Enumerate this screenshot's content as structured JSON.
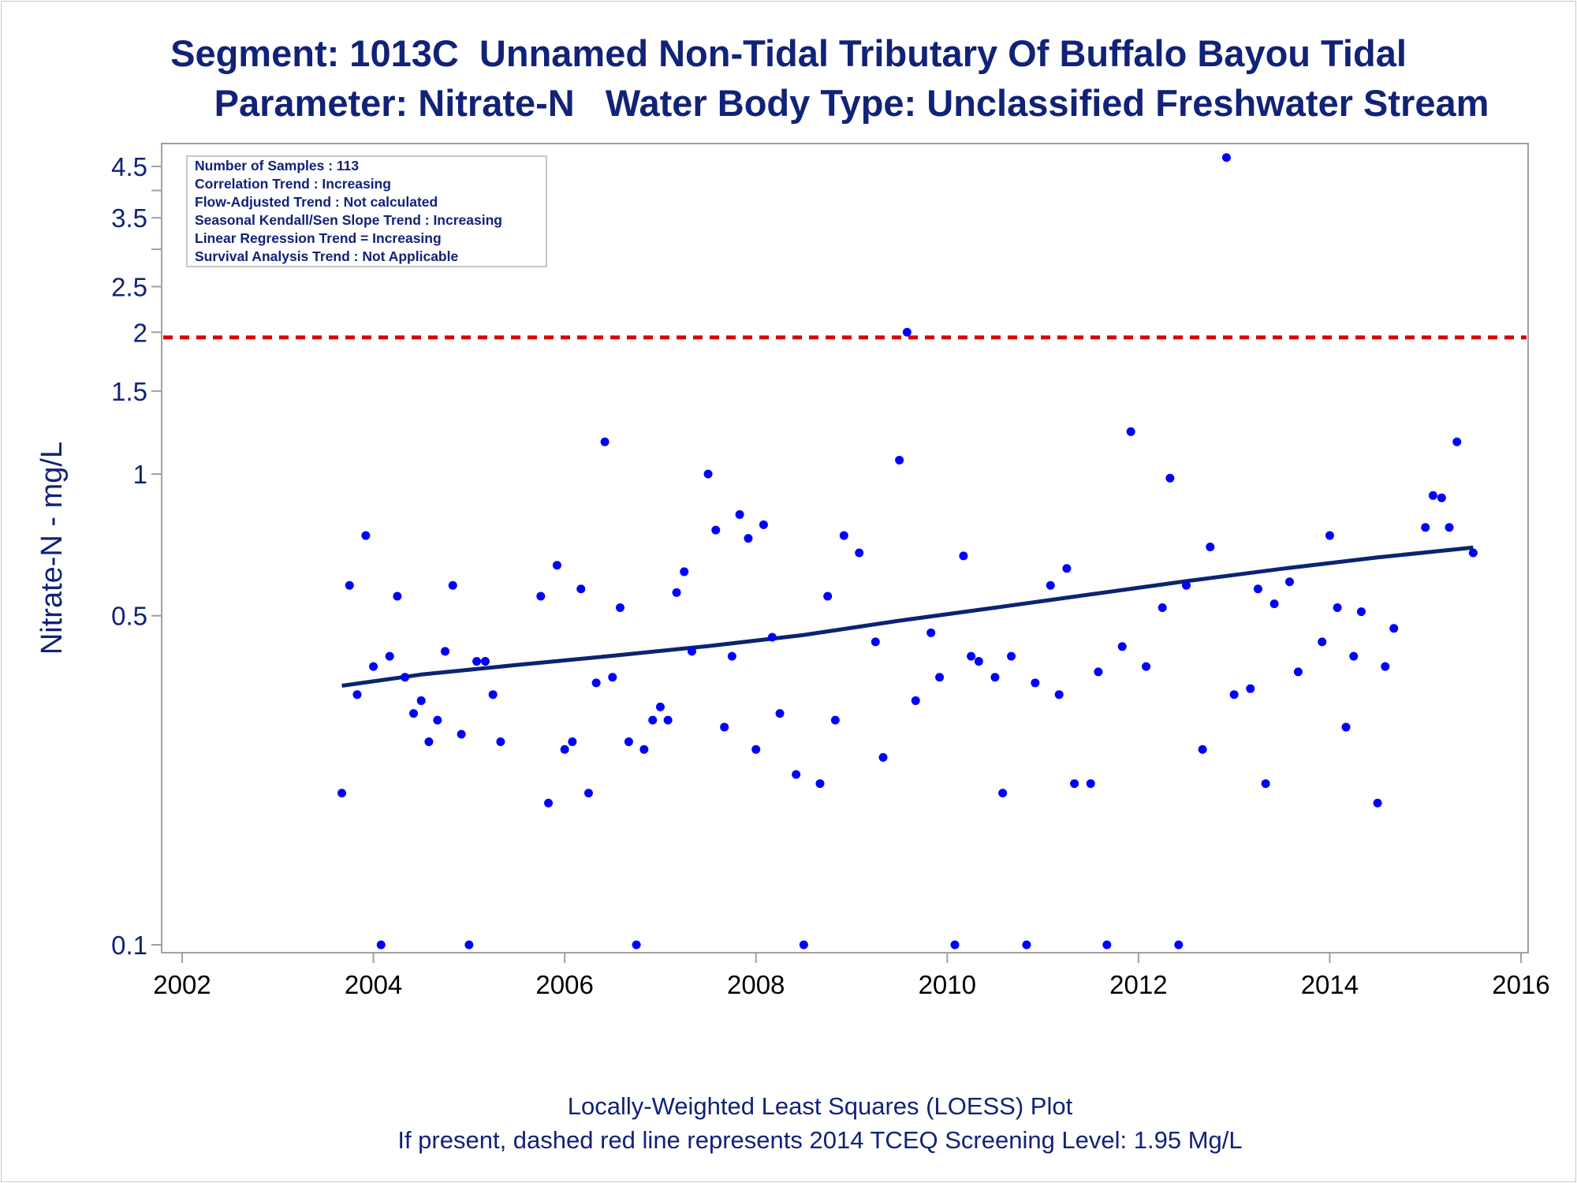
{
  "title_line1": "Segment: 1013C  Unnamed Non-Tidal Tributary Of Buffalo Bayou Tidal",
  "title_line2": "Parameter: Nitrate-N   Water Body Type: Unclassified Freshwater Stream",
  "footnote_line1": "Locally-Weighted Least Squares (LOESS) Plot",
  "footnote_line2": "If present, dashed red line represents 2014 TCEQ Screening Level: 1.95 Mg/L",
  "stats_box": [
    "Number of Samples : 113",
    "Correlation Trend : Increasing",
    "Flow-Adjusted Trend : Not calculated",
    "Seasonal Kendall/Sen Slope Trend : Increasing",
    "Linear Regression Trend = Increasing",
    "Survival Analysis Trend : Not Applicable"
  ],
  "colors": {
    "text": "#112277",
    "points": "#0000ff",
    "trend_line": "#0a2470",
    "screening_line": "#dd0000",
    "frame": "#a0a0a0"
  },
  "chart_data": {
    "type": "scatter",
    "xlabel": "",
    "ylabel": "Nitrate-N - mg/L",
    "x_scale": "year",
    "y_scale": "log",
    "xlim": [
      2002,
      2016
    ],
    "ylim": [
      0.1,
      4.9
    ],
    "xticks": [
      "2002",
      "2004",
      "2006",
      "2008",
      "2010",
      "2012",
      "2014",
      "2016"
    ],
    "yticks": [
      {
        "value": 0.1,
        "label": "0.1"
      },
      {
        "value": 0.5,
        "label": "0.5"
      },
      {
        "value": 1,
        "label": "1"
      },
      {
        "value": 1.5,
        "label": "1.5"
      },
      {
        "value": 2,
        "label": "2"
      },
      {
        "value": 2.5,
        "label": "2.5"
      },
      {
        "value": 3,
        "label": ""
      },
      {
        "value": 3.5,
        "label": "3.5"
      },
      {
        "value": 4,
        "label": ""
      },
      {
        "value": 4.5,
        "label": "4.5"
      }
    ],
    "screening_level": 1.95,
    "points": [
      [
        2003.67,
        0.21
      ],
      [
        2003.75,
        0.58
      ],
      [
        2003.83,
        0.34
      ],
      [
        2003.92,
        0.74
      ],
      [
        2004.0,
        0.39
      ],
      [
        2004.08,
        0.1
      ],
      [
        2004.17,
        0.41
      ],
      [
        2004.25,
        0.55
      ],
      [
        2004.33,
        0.37
      ],
      [
        2004.42,
        0.31
      ],
      [
        2004.5,
        0.33
      ],
      [
        2004.58,
        0.27
      ],
      [
        2004.67,
        0.3
      ],
      [
        2004.75,
        0.42
      ],
      [
        2004.83,
        0.58
      ],
      [
        2004.92,
        0.28
      ],
      [
        2005.0,
        0.1
      ],
      [
        2005.08,
        0.4
      ],
      [
        2005.17,
        0.4
      ],
      [
        2005.25,
        0.34
      ],
      [
        2005.33,
        0.27
      ],
      [
        2005.75,
        0.55
      ],
      [
        2005.83,
        0.2
      ],
      [
        2005.92,
        0.64
      ],
      [
        2006.0,
        0.26
      ],
      [
        2006.08,
        0.27
      ],
      [
        2006.17,
        0.57
      ],
      [
        2006.25,
        0.21
      ],
      [
        2006.33,
        0.36
      ],
      [
        2006.42,
        1.17
      ],
      [
        2006.5,
        0.37
      ],
      [
        2006.58,
        0.52
      ],
      [
        2006.67,
        0.27
      ],
      [
        2006.75,
        0.1
      ],
      [
        2006.83,
        0.26
      ],
      [
        2006.92,
        0.3
      ],
      [
        2007.0,
        0.32
      ],
      [
        2007.08,
        0.3
      ],
      [
        2007.17,
        0.56
      ],
      [
        2007.25,
        0.62
      ],
      [
        2007.33,
        0.42
      ],
      [
        2007.5,
        1.0
      ],
      [
        2007.58,
        0.76
      ],
      [
        2007.67,
        0.29
      ],
      [
        2007.75,
        0.41
      ],
      [
        2007.83,
        0.82
      ],
      [
        2007.92,
        0.73
      ],
      [
        2008.0,
        0.26
      ],
      [
        2008.08,
        0.78
      ],
      [
        2008.17,
        0.45
      ],
      [
        2008.25,
        0.31
      ],
      [
        2008.42,
        0.23
      ],
      [
        2008.5,
        0.1
      ],
      [
        2008.67,
        0.22
      ],
      [
        2008.75,
        0.55
      ],
      [
        2008.83,
        0.3
      ],
      [
        2008.92,
        0.74
      ],
      [
        2009.08,
        0.68
      ],
      [
        2009.25,
        0.44
      ],
      [
        2009.33,
        0.25
      ],
      [
        2009.5,
        1.07
      ],
      [
        2009.58,
        2.0
      ],
      [
        2009.67,
        0.33
      ],
      [
        2009.83,
        0.46
      ],
      [
        2009.92,
        0.37
      ],
      [
        2010.08,
        0.1
      ],
      [
        2010.17,
        0.67
      ],
      [
        2010.25,
        0.41
      ],
      [
        2010.33,
        0.4
      ],
      [
        2010.5,
        0.37
      ],
      [
        2010.58,
        0.21
      ],
      [
        2010.67,
        0.41
      ],
      [
        2010.83,
        0.1
      ],
      [
        2010.92,
        0.36
      ],
      [
        2011.08,
        0.58
      ],
      [
        2011.17,
        0.34
      ],
      [
        2011.25,
        0.63
      ],
      [
        2011.33,
        0.22
      ],
      [
        2011.5,
        0.22
      ],
      [
        2011.58,
        0.38
      ],
      [
        2011.67,
        0.1
      ],
      [
        2011.83,
        0.43
      ],
      [
        2011.92,
        1.23
      ],
      [
        2012.08,
        0.39
      ],
      [
        2012.25,
        0.52
      ],
      [
        2012.33,
        0.98
      ],
      [
        2012.42,
        0.1
      ],
      [
        2012.5,
        0.58
      ],
      [
        2012.67,
        0.26
      ],
      [
        2012.75,
        0.7
      ],
      [
        2012.92,
        4.7
      ],
      [
        2013.0,
        0.34
      ],
      [
        2013.17,
        0.35
      ],
      [
        2013.25,
        0.57
      ],
      [
        2013.33,
        0.22
      ],
      [
        2013.42,
        0.53
      ],
      [
        2013.58,
        0.59
      ],
      [
        2013.67,
        0.38
      ],
      [
        2013.92,
        0.44
      ],
      [
        2014.0,
        0.74
      ],
      [
        2014.08,
        0.52
      ],
      [
        2014.17,
        0.29
      ],
      [
        2014.25,
        0.41
      ],
      [
        2014.33,
        0.51
      ],
      [
        2014.5,
        0.2
      ],
      [
        2014.58,
        0.39
      ],
      [
        2014.67,
        0.47
      ],
      [
        2015.0,
        0.77
      ],
      [
        2015.08,
        0.9
      ],
      [
        2015.17,
        0.89
      ],
      [
        2015.25,
        0.77
      ],
      [
        2015.33,
        1.17
      ],
      [
        2015.5,
        0.68
      ]
    ],
    "loess_line": [
      [
        2003.67,
        0.355
      ],
      [
        2004.5,
        0.375
      ],
      [
        2005.5,
        0.393
      ],
      [
        2006.5,
        0.411
      ],
      [
        2007.5,
        0.431
      ],
      [
        2008.5,
        0.455
      ],
      [
        2009.5,
        0.488
      ],
      [
        2010.5,
        0.52
      ],
      [
        2011.5,
        0.555
      ],
      [
        2012.5,
        0.592
      ],
      [
        2013.5,
        0.629
      ],
      [
        2014.5,
        0.665
      ],
      [
        2015.5,
        0.698
      ]
    ]
  }
}
